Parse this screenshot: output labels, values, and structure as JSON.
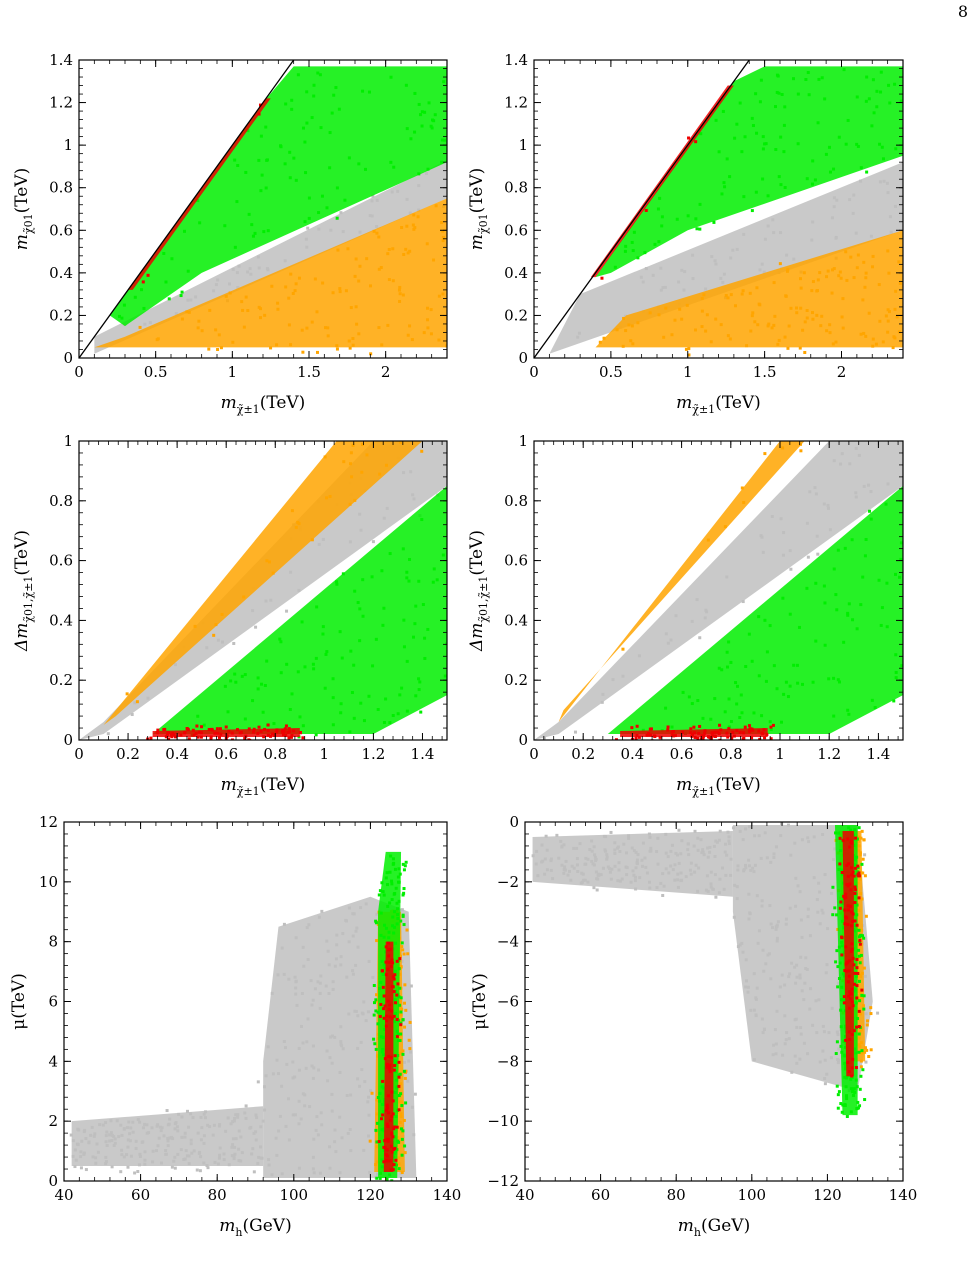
{
  "page_number": "8",
  "colors": {
    "excluded": "#bfbfbf",
    "orange": "#ffa500",
    "green": "#00ee00",
    "red": "#ee0000",
    "frame": "#000000"
  },
  "chart_data": [
    {
      "id": "top-left",
      "type": "scatter",
      "xlabel": "m_{χ̃±1}(TeV)",
      "ylabel": "m_{χ̃01}(TeV)",
      "xlim": [
        0,
        2.4
      ],
      "ylim": [
        0,
        1.4
      ],
      "xticks": [
        0,
        0.5,
        1,
        1.5,
        2
      ],
      "xtick_labels": [
        "0",
        "0.5",
        "1",
        "1.5",
        "2"
      ],
      "yticks": [
        0,
        0.2,
        0.4,
        0.6,
        0.8,
        1,
        1.2,
        1.4
      ],
      "ytick_labels": [
        "0",
        "0.2",
        "0.4",
        "0.6",
        "0.8",
        "1",
        "1.2",
        "1.4"
      ],
      "diagonal_line": {
        "from": [
          0,
          0
        ],
        "to": [
          1.4,
          1.4
        ]
      },
      "regions": [
        {
          "color": "excluded",
          "poly": [
            [
              0.1,
              0.02
            ],
            [
              2.4,
              0.75
            ],
            [
              2.4,
              0.93
            ],
            [
              0.1,
              0.1
            ]
          ]
        },
        {
          "color": "green",
          "poly": [
            [
              0.2,
              0.2
            ],
            [
              1.2,
              1.2
            ],
            [
              1.4,
              1.37
            ],
            [
              2.4,
              1.37
            ],
            [
              2.4,
              0.92
            ],
            [
              0.8,
              0.4
            ],
            [
              0.3,
              0.15
            ]
          ]
        },
        {
          "color": "orange",
          "poly": [
            [
              0.1,
              0.05
            ],
            [
              2.4,
              0.05
            ],
            [
              2.4,
              0.75
            ],
            [
              0.3,
              0.1
            ]
          ]
        },
        {
          "color": "red",
          "poly": [
            [
              0.35,
              0.32
            ],
            [
              1.25,
              1.22
            ],
            [
              1.22,
              1.22
            ],
            [
              0.32,
              0.32
            ]
          ]
        }
      ]
    },
    {
      "id": "top-right",
      "type": "scatter",
      "xlabel": "m_{χ̃±1}(TeV)",
      "ylabel": "m_{χ̃01}(TeV)",
      "xlim": [
        0,
        2.4
      ],
      "ylim": [
        0,
        1.4
      ],
      "xticks": [
        0,
        0.5,
        1,
        1.5,
        2
      ],
      "xtick_labels": [
        "0",
        "0.5",
        "1",
        "1.5",
        "2"
      ],
      "yticks": [
        0,
        0.2,
        0.4,
        0.6,
        0.8,
        1,
        1.2,
        1.4
      ],
      "ytick_labels": [
        "0",
        "0.2",
        "0.4",
        "0.6",
        "0.8",
        "1",
        "1.2",
        "1.4"
      ],
      "diagonal_line": {
        "from": [
          0,
          0
        ],
        "to": [
          1.4,
          1.4
        ]
      },
      "regions": [
        {
          "color": "excluded",
          "poly": [
            [
              0.1,
              0.02
            ],
            [
              2.4,
              0.6
            ],
            [
              2.4,
              0.92
            ],
            [
              0.3,
              0.3
            ]
          ]
        },
        {
          "color": "green",
          "poly": [
            [
              0.4,
              0.38
            ],
            [
              1.3,
              1.3
            ],
            [
              1.5,
              1.37
            ],
            [
              2.4,
              1.37
            ],
            [
              2.4,
              0.95
            ],
            [
              1.0,
              0.6
            ],
            [
              0.5,
              0.4
            ]
          ]
        },
        {
          "color": "orange",
          "poly": [
            [
              0.4,
              0.05
            ],
            [
              2.4,
              0.05
            ],
            [
              2.4,
              0.6
            ],
            [
              0.6,
              0.2
            ]
          ]
        },
        {
          "color": "red",
          "poly": [
            [
              0.4,
              0.38
            ],
            [
              1.3,
              1.28
            ],
            [
              1.26,
              1.28
            ],
            [
              0.37,
              0.38
            ]
          ]
        }
      ]
    },
    {
      "id": "middle-left",
      "type": "scatter",
      "xlabel": "m_{χ̃±1}(TeV)",
      "ylabel": "Δm_{χ̃01,χ̃±1}(TeV)",
      "xlim": [
        0,
        1.5
      ],
      "ylim": [
        0,
        1
      ],
      "xticks": [
        0,
        0.2,
        0.4,
        0.6,
        0.8,
        1,
        1.2,
        1.4
      ],
      "xtick_labels": [
        "0",
        "0.2",
        "0.4",
        "0.6",
        "0.8",
        "1",
        "1.2",
        "1.4"
      ],
      "yticks": [
        0,
        0.2,
        0.4,
        0.6,
        0.8,
        1
      ],
      "ytick_labels": [
        "0",
        "0.2",
        "0.4",
        "0.6",
        "0.8",
        "1"
      ],
      "regions": [
        {
          "color": "excluded",
          "poly": [
            [
              0.0,
              0.0
            ],
            [
              0.1,
              0.02
            ],
            [
              1.5,
              0.85
            ],
            [
              1.5,
              1.0
            ],
            [
              1.2,
              1.0
            ],
            [
              0.1,
              0.06
            ]
          ]
        },
        {
          "color": "orange",
          "poly": [
            [
              0.1,
              0.05
            ],
            [
              1.05,
              1.0
            ],
            [
              1.4,
              1.0
            ],
            [
              0.15,
              0.08
            ]
          ]
        },
        {
          "color": "green",
          "poly": [
            [
              0.3,
              0.02
            ],
            [
              1.5,
              0.85
            ],
            [
              1.5,
              0.15
            ],
            [
              1.2,
              0.02
            ]
          ]
        },
        {
          "color": "red",
          "poly": [
            [
              0.3,
              0.01
            ],
            [
              0.9,
              0.01
            ],
            [
              0.9,
              0.04
            ],
            [
              0.3,
              0.03
            ]
          ]
        }
      ]
    },
    {
      "id": "middle-right",
      "type": "scatter",
      "xlabel": "m_{χ̃±1}(TeV)",
      "ylabel": "Δm_{χ̃01,χ̃±1}(TeV)",
      "xlim": [
        0,
        1.5
      ],
      "ylim": [
        0,
        1
      ],
      "xticks": [
        0,
        0.2,
        0.4,
        0.6,
        0.8,
        1,
        1.2,
        1.4
      ],
      "xtick_labels": [
        "0",
        "0.2",
        "0.4",
        "0.6",
        "0.8",
        "1",
        "1.2",
        "1.4"
      ],
      "yticks": [
        0,
        0.2,
        0.4,
        0.6,
        0.8,
        1
      ],
      "ytick_labels": [
        "0",
        "0.2",
        "0.4",
        "0.6",
        "0.8",
        "1"
      ],
      "regions": [
        {
          "color": "excluded",
          "poly": [
            [
              0.0,
              0.0
            ],
            [
              0.1,
              0.02
            ],
            [
              1.5,
              0.85
            ],
            [
              1.5,
              1.0
            ],
            [
              1.2,
              1.0
            ],
            [
              0.1,
              0.06
            ]
          ]
        },
        {
          "color": "orange",
          "poly": [
            [
              0.1,
              0.06
            ],
            [
              1.0,
              1.0
            ],
            [
              1.1,
              1.0
            ],
            [
              0.12,
              0.1
            ]
          ]
        },
        {
          "color": "green",
          "poly": [
            [
              0.3,
              0.02
            ],
            [
              1.5,
              0.85
            ],
            [
              1.5,
              0.15
            ],
            [
              1.2,
              0.02
            ]
          ]
        },
        {
          "color": "red",
          "poly": [
            [
              0.35,
              0.01
            ],
            [
              0.95,
              0.01
            ],
            [
              0.95,
              0.04
            ],
            [
              0.35,
              0.03
            ]
          ]
        }
      ]
    },
    {
      "id": "bottom-left",
      "type": "scatter",
      "xlabel": "m_{h}(GeV)",
      "ylabel": "μ(TeV)",
      "xlim": [
        40,
        140
      ],
      "ylim": [
        0,
        12
      ],
      "xticks": [
        40,
        60,
        80,
        100,
        120,
        140
      ],
      "xtick_labels": [
        "40",
        "60",
        "80",
        "100",
        "120",
        "140"
      ],
      "yticks": [
        0,
        2,
        4,
        6,
        8,
        10,
        12
      ],
      "ytick_labels": [
        "0",
        "2",
        "4",
        "6",
        "8",
        "10",
        "12"
      ],
      "regions": [
        {
          "color": "excluded",
          "poly": [
            [
              92,
              0.1
            ],
            [
              132,
              0.1
            ],
            [
              130,
              9.0
            ],
            [
              120,
              9.5
            ],
            [
              96,
              8.5
            ],
            [
              92,
              4.0
            ]
          ]
        },
        {
          "color": "excluded",
          "poly": [
            [
              42,
              0.5
            ],
            [
              92,
              0.5
            ],
            [
              92,
              2.5
            ],
            [
              42,
              2.0
            ]
          ]
        },
        {
          "color": "orange",
          "poly": [
            [
              121,
              0.3
            ],
            [
              129,
              0.3
            ],
            [
              128,
              9.0
            ],
            [
              122,
              9.0
            ]
          ]
        },
        {
          "color": "green",
          "poly": [
            [
              122,
              0.1
            ],
            [
              127,
              0.1
            ],
            [
              128,
              11.0
            ],
            [
              124,
              11.0
            ],
            [
              122,
              9.0
            ]
          ]
        },
        {
          "color": "red",
          "poly": [
            [
              123.5,
              0.3
            ],
            [
              126,
              0.3
            ],
            [
              126,
              8.0
            ],
            [
              124,
              8.0
            ]
          ]
        }
      ]
    },
    {
      "id": "bottom-right",
      "type": "scatter",
      "xlabel": "m_{h}(GeV)",
      "ylabel": "μ(TeV)",
      "xlim": [
        40,
        140
      ],
      "ylim": [
        -12,
        0
      ],
      "xticks": [
        40,
        60,
        80,
        100,
        120,
        140
      ],
      "xtick_labels": [
        "40",
        "60",
        "80",
        "100",
        "120",
        "140"
      ],
      "yticks": [
        -12,
        -10,
        -8,
        -6,
        -4,
        -2,
        0
      ],
      "ytick_labels": [
        "−12",
        "−10",
        "−8",
        "−6",
        "−4",
        "−2",
        "0"
      ],
      "regions": [
        {
          "color": "excluded",
          "poly": [
            [
              95,
              -0.1
            ],
            [
              128,
              -0.1
            ],
            [
              132,
              -6.0
            ],
            [
              128,
              -9.0
            ],
            [
              100,
              -8.0
            ],
            [
              95,
              -3.0
            ]
          ]
        },
        {
          "color": "excluded",
          "poly": [
            [
              42,
              -0.5
            ],
            [
              95,
              -0.3
            ],
            [
              95,
              -2.5
            ],
            [
              42,
              -2.0
            ]
          ]
        },
        {
          "color": "orange",
          "poly": [
            [
              123,
              -0.3
            ],
            [
              129,
              -0.3
            ],
            [
              130,
              -8.0
            ],
            [
              125,
              -8.0
            ]
          ]
        },
        {
          "color": "green",
          "poly": [
            [
              122,
              -0.1
            ],
            [
              128,
              -0.1
            ],
            [
              128,
              -9.8
            ],
            [
              124,
              -9.8
            ]
          ]
        },
        {
          "color": "red",
          "poly": [
            [
              124,
              -0.3
            ],
            [
              127,
              -0.3
            ],
            [
              127,
              -8.5
            ],
            [
              125,
              -8.5
            ]
          ]
        }
      ]
    }
  ]
}
